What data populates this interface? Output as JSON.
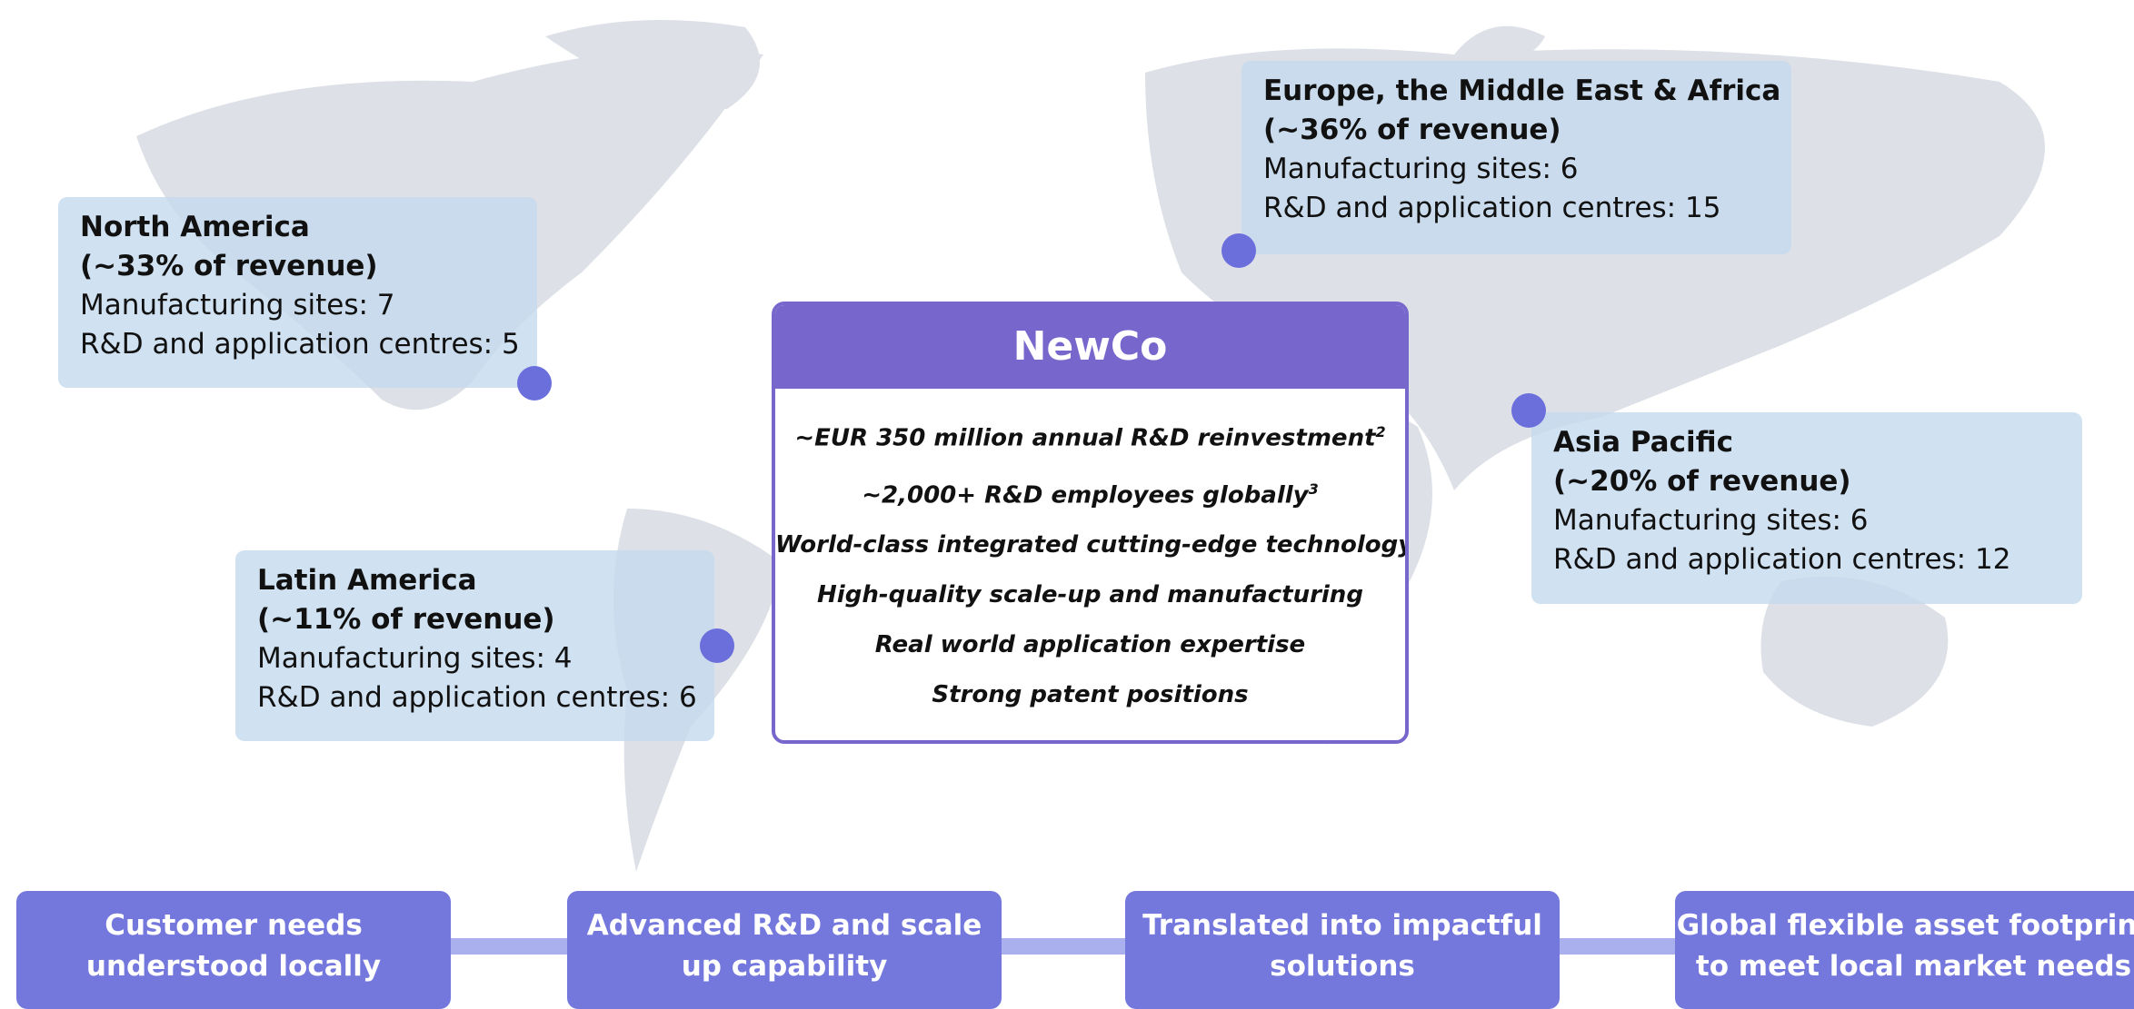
{
  "regions": [
    {
      "title": "North America",
      "revenue": "(~33% of revenue)",
      "manufacturing": "Manufacturing sites: 7",
      "rnd": "R&D and application centres: 5"
    },
    {
      "title": "Europe, the Middle East & Africa",
      "revenue": "(~36% of revenue)",
      "manufacturing": "Manufacturing sites: 6",
      "rnd": "R&D and application centres: 15"
    },
    {
      "title": "Asia Pacific",
      "revenue": "(~20% of revenue)",
      "manufacturing": "Manufacturing sites: 6",
      "rnd": "R&D and application centres: 12"
    },
    {
      "title": "Latin America",
      "revenue": "(~11% of revenue)",
      "manufacturing": "Manufacturing sites: 4",
      "rnd": "R&D and application centres: 6"
    }
  ],
  "center": {
    "title": "NewCo",
    "points": [
      {
        "text": "~EUR 350 million annual R&D reinvestment",
        "note": "2"
      },
      {
        "text": "~2,000+ R&D employees globally",
        "note": "3"
      },
      {
        "text": "World-class integrated cutting-edge technology"
      },
      {
        "text": "High-quality scale-up and manufacturing"
      },
      {
        "text": "Real world application expertise"
      },
      {
        "text": "Strong patent positions"
      }
    ]
  },
  "steps": [
    {
      "lines": [
        "Customer needs",
        "understood locally"
      ]
    },
    {
      "lines": [
        "Advanced R&D and scale",
        "up capability"
      ]
    },
    {
      "lines": [
        "Translated into impactful",
        "solutions"
      ]
    },
    {
      "lines": [
        "Global flexible asset footprint",
        "to meet local market needs"
      ]
    }
  ]
}
